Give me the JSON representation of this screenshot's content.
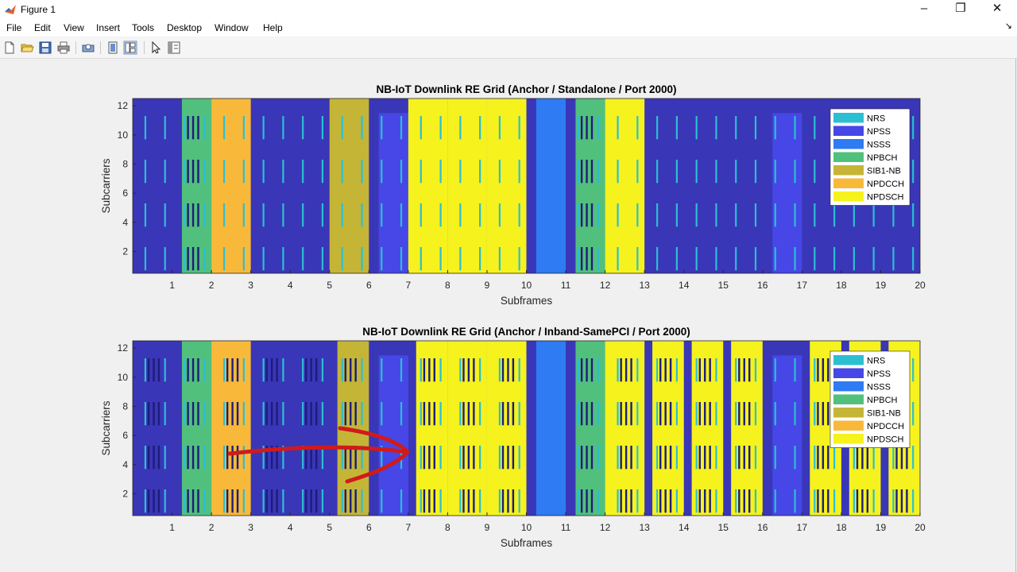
{
  "window": {
    "title": "Figure 1"
  },
  "menu": [
    "File",
    "Edit",
    "View",
    "Insert",
    "Tools",
    "Desktop",
    "Window",
    "Help"
  ],
  "toolbar_icons": [
    "new-figure-icon",
    "open-icon",
    "save-icon",
    "print-icon",
    "print-preview-icon",
    "hide-plot-tools-icon",
    "show-plot-tools-icon",
    "edit-plot-icon",
    "open-property-inspector-icon"
  ],
  "colors": {
    "background_subframe": "#3a36b8",
    "NRS": "#2bbfd1",
    "NPSS": "#4647e6",
    "NSSS": "#2e7bf3",
    "NPBCH": "#52c07d",
    "SIB1-NB": "#c5b536",
    "NPDCCH": "#f8b93a",
    "NPDSCH": "#f6f21e",
    "annotation_arrow": "#d11a1a"
  },
  "chart_data": [
    {
      "type": "heatmap",
      "title": "NB-IoT Downlink RE Grid (Anchor / Standalone / Port 2000)",
      "xlabel": "Subframes",
      "ylabel": "Subcarriers",
      "xticks": [
        "1",
        "2",
        "3",
        "4",
        "5",
        "6",
        "7",
        "8",
        "9",
        "10",
        "11",
        "12",
        "13",
        "14",
        "15",
        "16",
        "17",
        "18",
        "19",
        "20"
      ],
      "yticks": [
        "2",
        "4",
        "6",
        "8",
        "10",
        "12"
      ],
      "xlim": [
        0,
        20
      ],
      "ylim": [
        0.5,
        12.5
      ],
      "legend": [
        "NRS",
        "NPSS",
        "NSSS",
        "NPBCH",
        "SIB1-NB",
        "NPDCCH",
        "NPDSCH"
      ],
      "legend_position": "top-right",
      "subframes": [
        "none",
        "NPBCH",
        "NPDCCH",
        "none",
        "none",
        "SIB1-NB",
        "NPSS",
        "NPDSCH",
        "NPDSCH",
        "NPDSCH",
        "NSSS",
        "NPBCH",
        "NPDSCH",
        "none",
        "none",
        "none",
        "NPSS",
        "none",
        "none",
        "none"
      ]
    },
    {
      "type": "heatmap",
      "title": "NB-IoT Downlink RE Grid (Anchor / Inband-SamePCI / Port 2000)",
      "xlabel": "Subframes",
      "ylabel": "Subcarriers",
      "xticks": [
        "1",
        "2",
        "3",
        "4",
        "5",
        "6",
        "7",
        "8",
        "9",
        "10",
        "11",
        "12",
        "13",
        "14",
        "15",
        "16",
        "17",
        "18",
        "19",
        "20"
      ],
      "yticks": [
        "2",
        "4",
        "6",
        "8",
        "10",
        "12"
      ],
      "xlim": [
        0,
        20
      ],
      "ylim": [
        0.5,
        12.5
      ],
      "legend": [
        "NRS",
        "NPSS",
        "NSSS",
        "NPBCH",
        "SIB1-NB",
        "NPDCCH",
        "NPDSCH"
      ],
      "legend_position": "top-right",
      "subframes": [
        "none",
        "NPBCH",
        "NPDCCH",
        "none",
        "none",
        "SIB1-NB",
        "NPSS",
        "NPDSCH",
        "NPDSCH",
        "NPDSCH",
        "NSSS",
        "NPBCH",
        "NPDSCH",
        "NPDSCH",
        "NPDSCH",
        "NPDSCH",
        "NPSS",
        "NPDSCH",
        "NPDSCH",
        "NPDSCH"
      ]
    }
  ]
}
